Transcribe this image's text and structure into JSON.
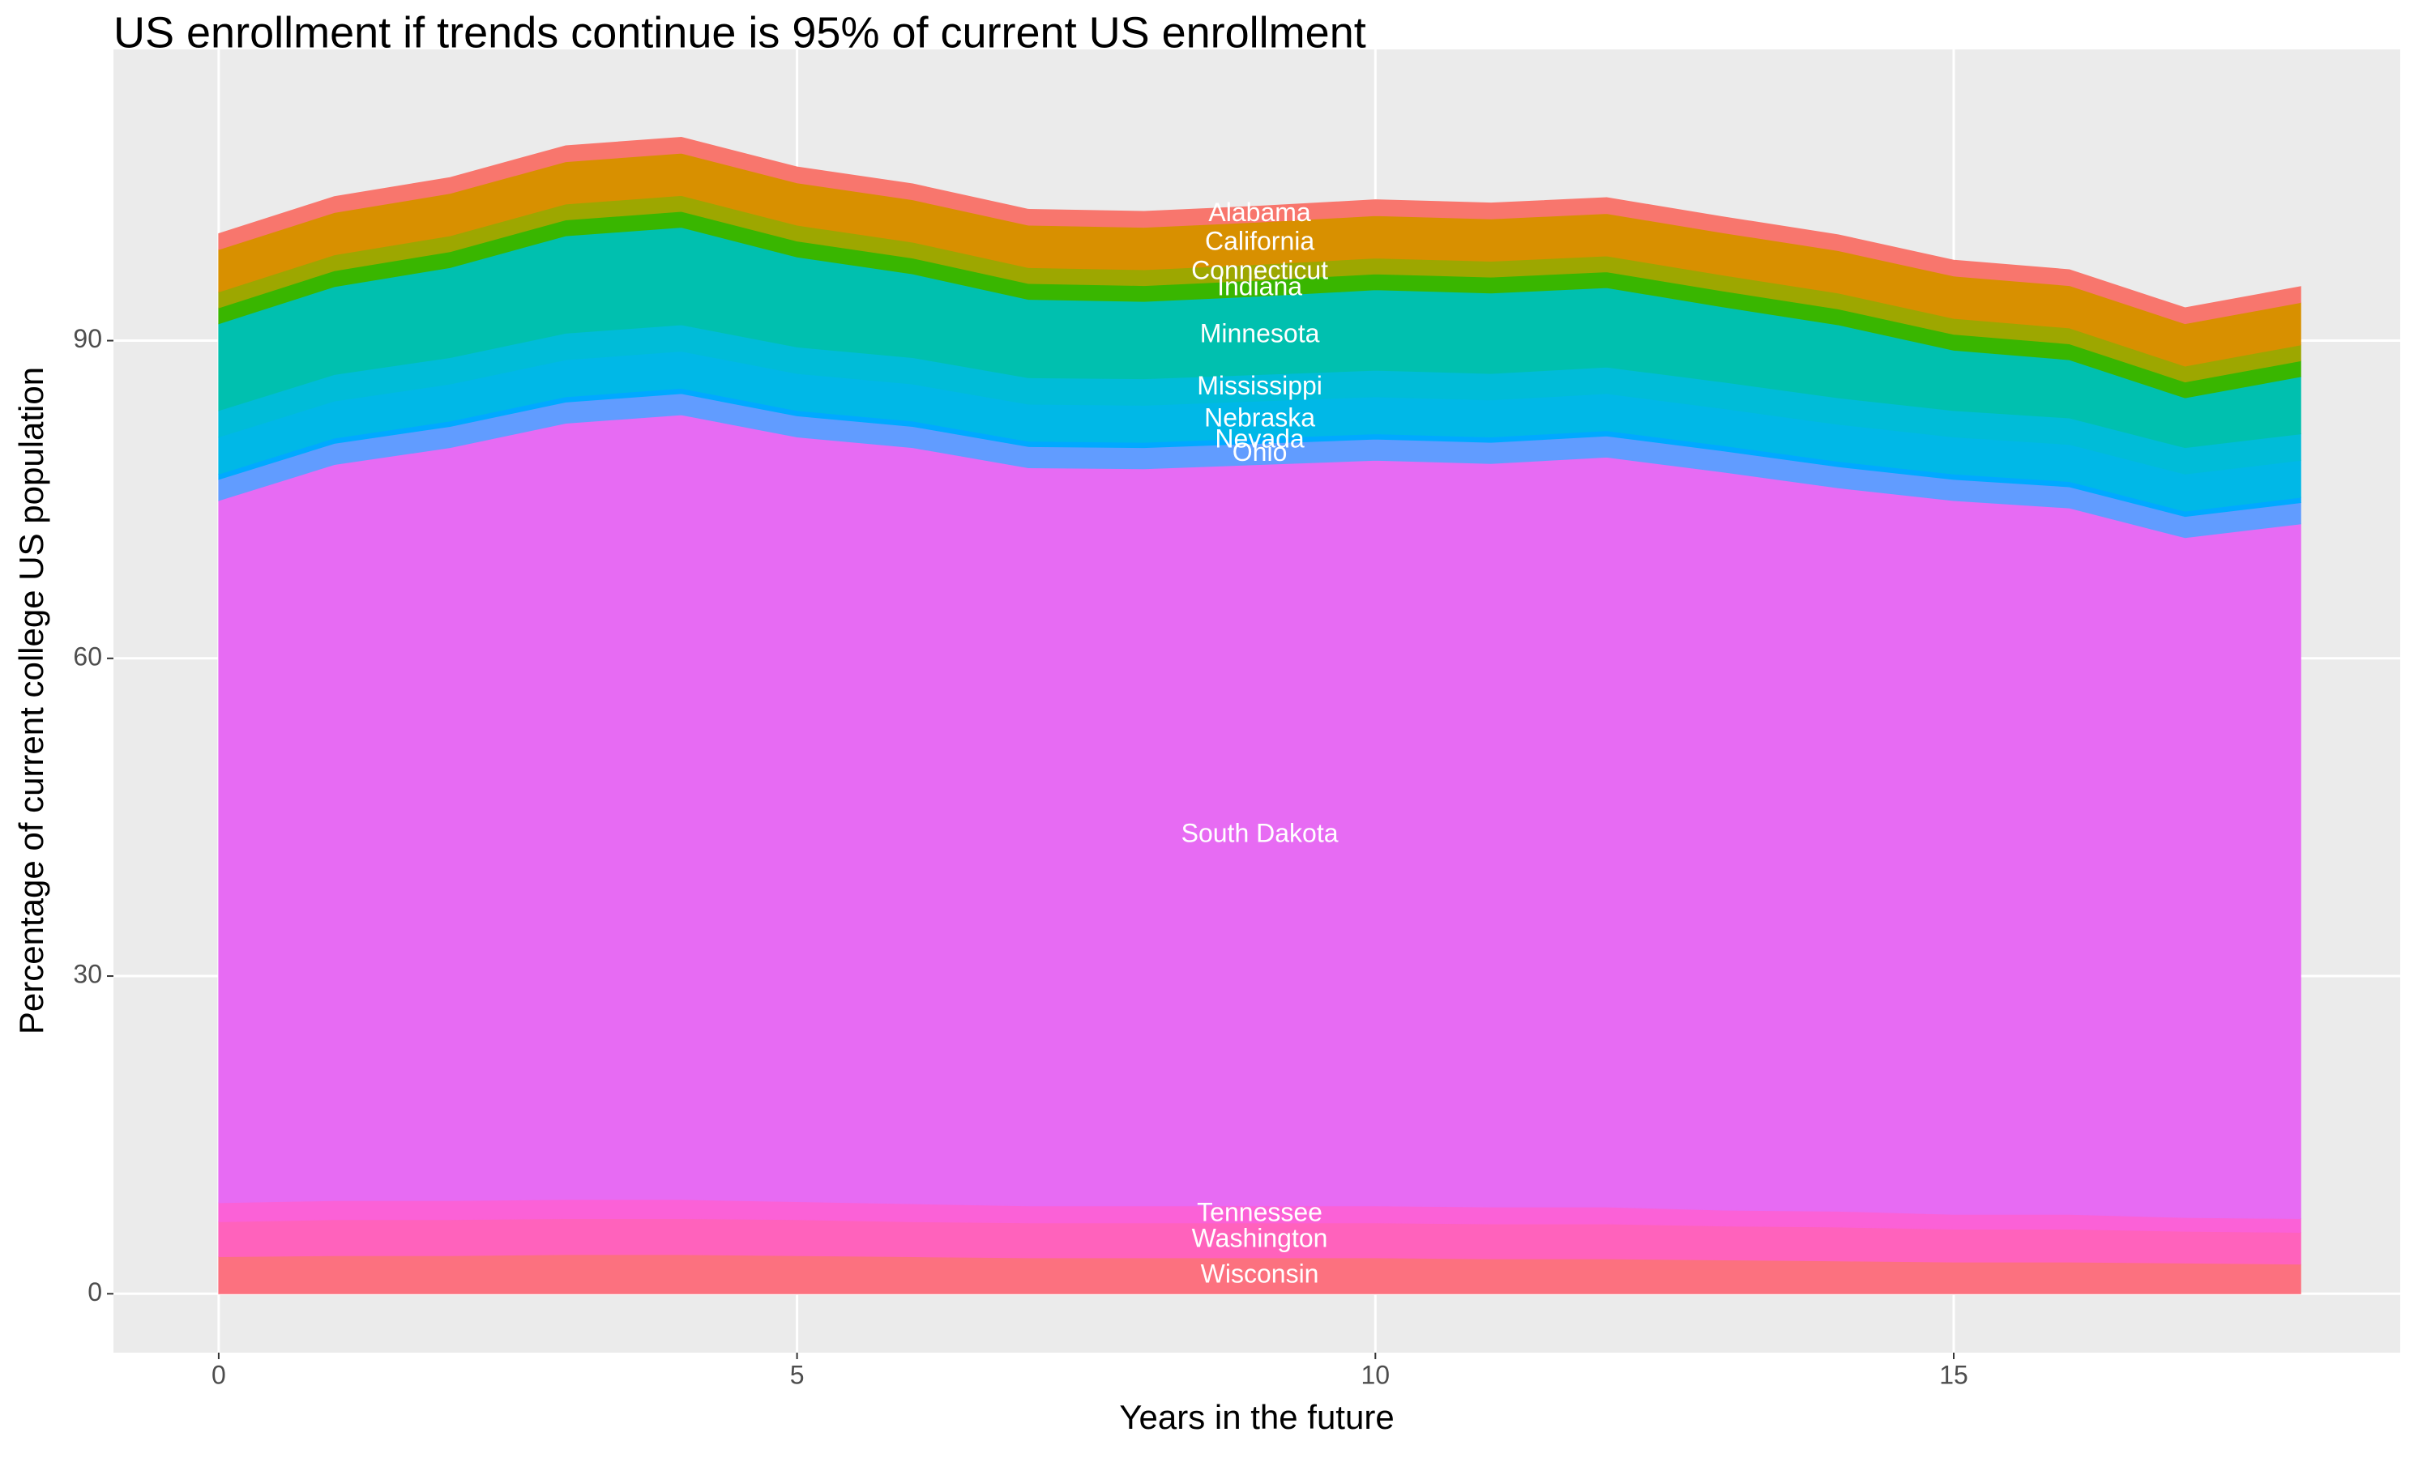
{
  "chart_data": {
    "type": "stacked-area",
    "title": "US enrollment if trends continue is 95% of current US enrollment",
    "x_label": "Years in the future",
    "y_label": "Percentage of current college US population",
    "x": [
      0,
      1,
      2,
      3,
      4,
      5,
      6,
      7,
      8,
      9,
      10,
      11,
      12,
      13,
      14,
      15,
      16,
      17,
      18
    ],
    "xlim": [
      -0.91,
      18.86
    ],
    "xticks": [
      0,
      5,
      10,
      15
    ],
    "ylim": [
      -5.56,
      117.5
    ],
    "yticks": [
      0,
      30,
      60,
      90
    ],
    "grid": true,
    "series": [
      {
        "name": "Wisconsin",
        "color": "#fc717f",
        "values": [
          3.5,
          3.6,
          3.6,
          3.7,
          3.7,
          3.6,
          3.5,
          3.4,
          3.4,
          3.4,
          3.4,
          3.3,
          3.3,
          3.2,
          3.1,
          3.0,
          3.0,
          2.9,
          2.8
        ]
      },
      {
        "name": "Washington",
        "color": "#ff62bc",
        "values": [
          3.3,
          3.4,
          3.4,
          3.4,
          3.4,
          3.4,
          3.3,
          3.3,
          3.3,
          3.3,
          3.3,
          3.3,
          3.3,
          3.2,
          3.2,
          3.1,
          3.1,
          3.0,
          3.0
        ]
      },
      {
        "name": "Tennessee",
        "color": "#fb61d7",
        "values": [
          1.8,
          1.8,
          1.8,
          1.8,
          1.8,
          1.7,
          1.7,
          1.6,
          1.6,
          1.6,
          1.6,
          1.6,
          1.6,
          1.5,
          1.5,
          1.4,
          1.4,
          1.3,
          1.3
        ]
      },
      {
        "name": "South Dakota",
        "color": "#e76bf3",
        "values": [
          66.3,
          69.5,
          71.1,
          73.3,
          74.1,
          72.2,
          71.4,
          69.7,
          69.6,
          70.0,
          70.4,
          70.2,
          70.8,
          69.7,
          68.3,
          67.4,
          66.7,
          64.2,
          65.6
        ]
      },
      {
        "name": "Ohio",
        "color": "#619cff",
        "values": [
          2,
          2,
          2,
          2,
          2,
          2,
          2,
          2,
          2,
          2,
          2,
          2,
          2,
          2,
          2,
          2,
          2,
          2,
          2
        ]
      },
      {
        "name": "Nevada",
        "color": "#00a9ff",
        "values": [
          0.5,
          0.5,
          0.5,
          0.5,
          0.5,
          0.5,
          0.5,
          0.5,
          0.5,
          0.5,
          0.5,
          0.5,
          0.5,
          0.5,
          0.5,
          0.5,
          0.5,
          0.5,
          0.5
        ]
      },
      {
        "name": "Nebraska",
        "color": "#00b8e7",
        "values": [
          3.5,
          3.5,
          3.5,
          3.5,
          3.5,
          3.5,
          3.5,
          3.5,
          3.5,
          3.5,
          3.5,
          3.5,
          3.5,
          3.5,
          3.5,
          3.5,
          3.5,
          3.5,
          3.5
        ]
      },
      {
        "name": "Mississippi",
        "color": "#00bcd8",
        "values": [
          2.5,
          2.5,
          2.5,
          2.5,
          2.5,
          2.5,
          2.5,
          2.5,
          2.5,
          2.5,
          2.5,
          2.5,
          2.5,
          2.5,
          2.5,
          2.5,
          2.5,
          2.5,
          2.5
        ]
      },
      {
        "name": "Minnesota",
        "color": "#00c0af",
        "values": [
          8.2,
          8.3,
          8.5,
          9.2,
          9.2,
          8.5,
          7.9,
          7.4,
          7.3,
          7.4,
          7.6,
          7.6,
          7.5,
          7.1,
          6.9,
          5.7,
          5.5,
          4.7,
          5.4
        ]
      },
      {
        "name": "Indiana",
        "color": "#39b600",
        "values": [
          1.5,
          1.5,
          1.5,
          1.5,
          1.5,
          1.5,
          1.5,
          1.5,
          1.5,
          1.5,
          1.5,
          1.5,
          1.5,
          1.5,
          1.5,
          1.5,
          1.5,
          1.5,
          1.5
        ]
      },
      {
        "name": "Connecticut",
        "color": "#9da700",
        "values": [
          1.5,
          1.5,
          1.5,
          1.5,
          1.5,
          1.5,
          1.5,
          1.5,
          1.5,
          1.5,
          1.5,
          1.5,
          1.5,
          1.5,
          1.5,
          1.5,
          1.5,
          1.5,
          1.5
        ]
      },
      {
        "name": "California",
        "color": "#d89000",
        "values": [
          4,
          4,
          4,
          4,
          4,
          4,
          4,
          4,
          4,
          4,
          4,
          4,
          4,
          4,
          4,
          4,
          4,
          4,
          4
        ]
      },
      {
        "name": "Alabama",
        "color": "#f8766d",
        "values": [
          1.5,
          1.5,
          1.5,
          1.5,
          1.5,
          1.5,
          1.5,
          1.5,
          1.5,
          1.5,
          1.5,
          1.5,
          1.5,
          1.5,
          1.5,
          1.5,
          1.5,
          1.5,
          1.5
        ]
      }
    ]
  }
}
